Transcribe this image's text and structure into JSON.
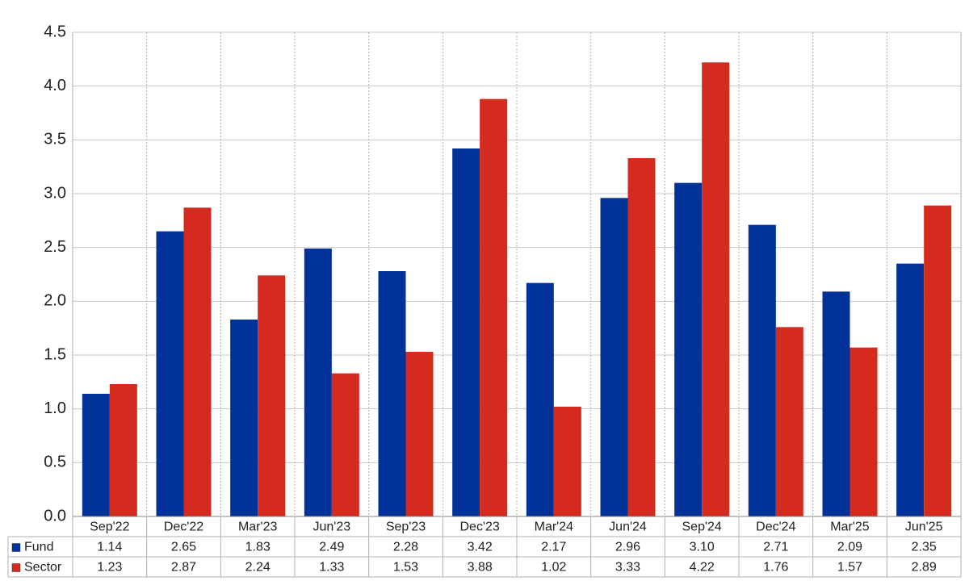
{
  "chart_data": {
    "type": "bar",
    "categories": [
      "Sep'22",
      "Dec'22",
      "Mar'23",
      "Jun'23",
      "Sep'23",
      "Dec'23",
      "Mar'24",
      "Jun'24",
      "Sep'24",
      "Dec'24",
      "Mar'25",
      "Jun'25"
    ],
    "series": [
      {
        "name": "Fund",
        "color": "#003299",
        "values": [
          1.14,
          2.65,
          1.83,
          2.49,
          2.28,
          3.42,
          2.17,
          2.96,
          3.1,
          2.71,
          2.09,
          2.35
        ],
        "value_labels": [
          "1.14",
          "2.65",
          "1.83",
          "2.49",
          "2.28",
          "3.42",
          "2.17",
          "2.96",
          "3.10",
          "2.71",
          "2.09",
          "2.35"
        ]
      },
      {
        "name": "Sector",
        "color": "#d52b1e",
        "values": [
          1.23,
          2.87,
          2.24,
          1.33,
          1.53,
          3.88,
          1.02,
          3.33,
          4.22,
          1.76,
          1.57,
          2.89
        ],
        "value_labels": [
          "1.23",
          "2.87",
          "2.24",
          "1.33",
          "1.53",
          "3.88",
          "1.02",
          "3.33",
          "4.22",
          "1.76",
          "1.57",
          "2.89"
        ]
      }
    ],
    "ylim": [
      0,
      4.5
    ],
    "yticks": [
      {
        "value": 0,
        "label": "0.0"
      },
      0.5,
      {
        "value": 1,
        "label": "1.0"
      },
      1.5,
      {
        "value": 2,
        "label": "2.0"
      },
      2.5,
      {
        "value": 3,
        "label": "3.0"
      },
      3.5,
      {
        "value": 4,
        "label": "4.0"
      },
      4.5
    ],
    "grid": true
  }
}
